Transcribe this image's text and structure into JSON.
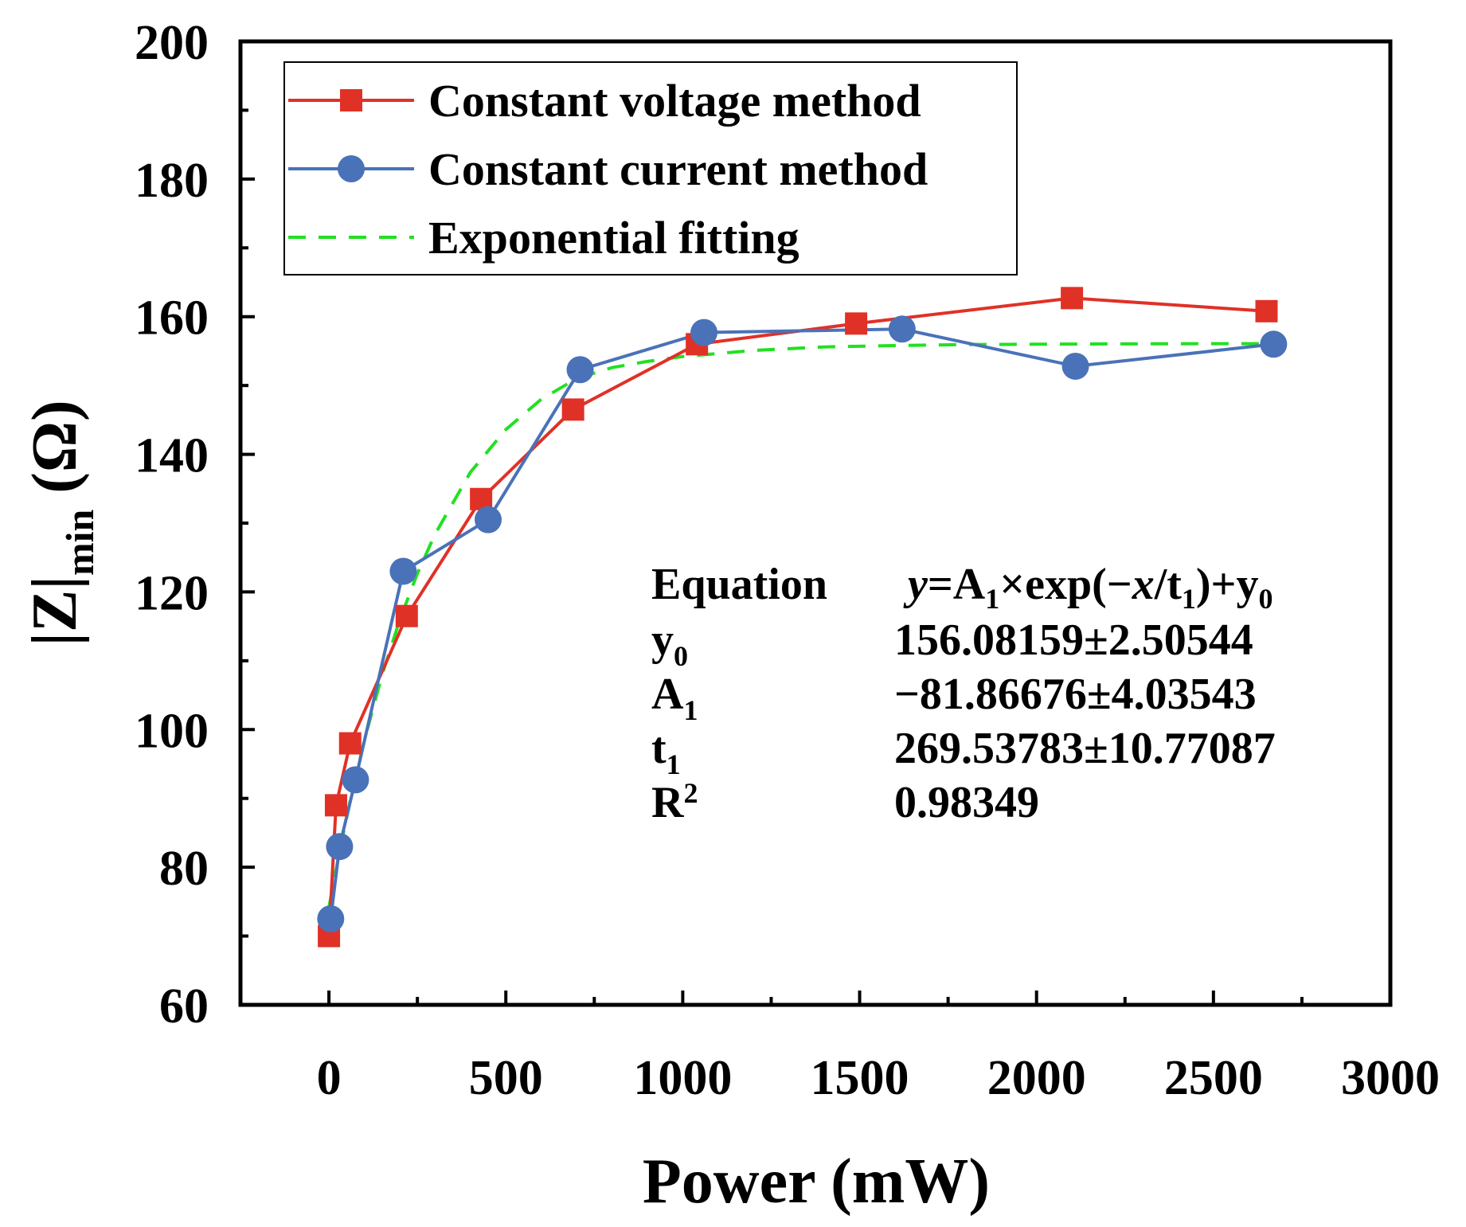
{
  "chart_data": {
    "type": "line",
    "xlabel": "Power (mW)",
    "ylabel": {
      "main": "|Z|",
      "sub": "min",
      "unit": " (Ω)"
    },
    "xlim": [
      -250,
      3000
    ],
    "ylim": [
      60,
      200
    ],
    "x_ticks": [
      0,
      500,
      1000,
      1500,
      2000,
      2500,
      3000
    ],
    "x_tick_labels": [
      "0",
      "500",
      "1000",
      "1500",
      "2000",
      "2500",
      "3000"
    ],
    "x_minor_ticks": [
      250,
      750,
      1250,
      1750,
      2250,
      2750
    ],
    "y_ticks": [
      60,
      80,
      100,
      120,
      140,
      160,
      180,
      200
    ],
    "y_tick_labels": [
      "60",
      "80",
      "100",
      "120",
      "140",
      "160",
      "180",
      "200"
    ],
    "y_minor_ticks": [
      70,
      90,
      110,
      130,
      150,
      170,
      190
    ],
    "grid": false,
    "legend_position": "top-left",
    "series": [
      {
        "name": "Constant voltage method",
        "color": "#e03127",
        "marker": "square",
        "line_style": "solid",
        "x": [
          0,
          20,
          60,
          220,
          430,
          690,
          1040,
          1490,
          2100,
          2650
        ],
        "y": [
          70,
          89,
          98,
          116.5,
          133.5,
          146.5,
          156,
          159,
          162.7,
          160.8
        ]
      },
      {
        "name": "Constant current method",
        "color": "#4a72b8",
        "marker": "circle",
        "line_style": "solid",
        "x": [
          5,
          30,
          75,
          210,
          450,
          710,
          1060,
          1620,
          2110,
          2670
        ],
        "y": [
          72.5,
          83,
          92.7,
          123,
          130.5,
          152.3,
          157.7,
          158.2,
          152.8,
          156
        ]
      },
      {
        "name": "Exponential fitting",
        "color": "#22e022",
        "marker": "none",
        "line_style": "dashed",
        "x": [
          0,
          30,
          60,
          100,
          150,
          200,
          250,
          300,
          400,
          500,
          600,
          700,
          800,
          900,
          1000,
          1200,
          1400,
          1600,
          1800,
          2000,
          2200,
          2400,
          2650
        ],
        "y": [
          74.2,
          82.3,
          89.6,
          98.4,
          107.9,
          115.9,
          122.7,
          128.4,
          137.4,
          143.6,
          148.0,
          151.0,
          152.6,
          153.5,
          154.2,
          155.1,
          155.6,
          155.8,
          155.95,
          156.0,
          156.05,
          156.07,
          156.08
        ]
      }
    ],
    "annotation": {
      "rows": [
        {
          "label": "Equation",
          "label_sub": "",
          "label_sup": "",
          "value": ""
        },
        {
          "label": "y",
          "label_sub": "0",
          "label_sup": "",
          "value": "156.08159±2.50544"
        },
        {
          "label": "A",
          "label_sub": "1",
          "label_sup": "",
          "value": "−81.86676±4.03543"
        },
        {
          "label": "t",
          "label_sub": "1",
          "label_sup": "",
          "value": "269.53783±10.77087"
        },
        {
          "label": "R",
          "label_sub": "",
          "label_sup": "2",
          "value": "0.98349"
        }
      ],
      "equation": {
        "y": "y",
        "eq_a": "=A",
        "sub1": "1",
        "times": "×exp(−",
        "x": "x",
        "slash": "/t",
        "sub2": "1",
        "close": ")+y",
        "sub3": "0"
      }
    }
  }
}
